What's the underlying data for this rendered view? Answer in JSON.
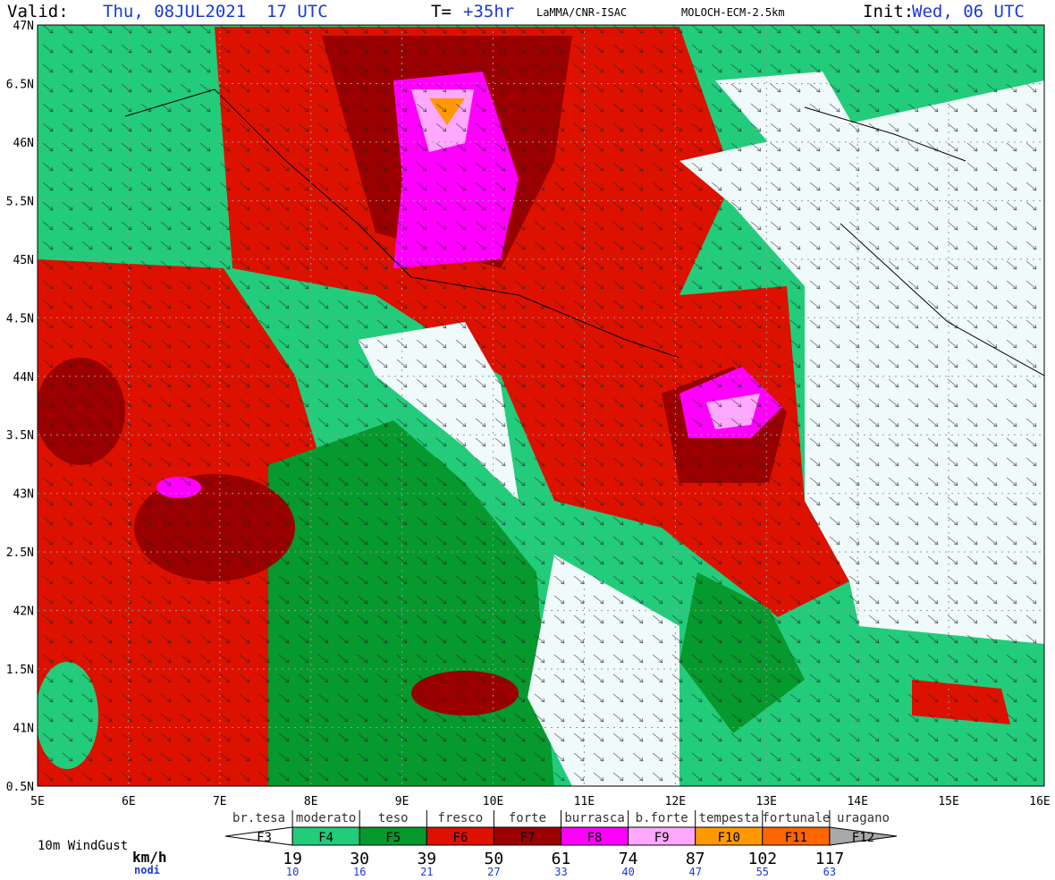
{
  "header": {
    "valid_label": "Valid:",
    "valid": "Thu, 08JUL2021  17 UTC",
    "t_label": "T=",
    "t_value": "+35hr",
    "source": "LaMMA/CNR-ISAC",
    "model": "MOLOCH-ECM-2.5km",
    "init_label": "Init:",
    "init": "Wed, 06 UTC"
  },
  "map": {
    "lat_labels": [
      "47N",
      "6.5N",
      "46N",
      "5.5N",
      "45N",
      "4.5N",
      "44N",
      "3.5N",
      "43N",
      "2.5N",
      "42N",
      "1.5N",
      "41N",
      "0.5N"
    ],
    "lon_labels": [
      "5E",
      "6E",
      "7E",
      "8E",
      "9E",
      "10E",
      "11E",
      "12E",
      "13E",
      "14E",
      "15E",
      "16E"
    ]
  },
  "legend": {
    "title": "10m WindGust",
    "unit_kmh": "km/h",
    "unit_knots": "nodi",
    "scale_names": [
      "br.tesa",
      "moderato",
      "teso",
      "fresco",
      "forte",
      "burrasca",
      "b.forte",
      "tempesta",
      "fortunale",
      "uragano"
    ],
    "classes": [
      {
        "label": "F3",
        "color": "#ffffff"
      },
      {
        "label": "F4",
        "color": "#22cc7a"
      },
      {
        "label": "F5",
        "color": "#06992e"
      },
      {
        "label": "F6",
        "color": "#dd1100"
      },
      {
        "label": "F7",
        "color": "#9a0000"
      },
      {
        "label": "F8",
        "color": "#ff00ff"
      },
      {
        "label": "F9",
        "color": "#ffa8ff"
      },
      {
        "label": "F10",
        "color": "#ff9900"
      },
      {
        "label": "F11",
        "color": "#ff6600"
      },
      {
        "label": "F12",
        "color": "#a8a8a8"
      }
    ],
    "kmh": [
      19,
      30,
      39,
      50,
      61,
      74,
      87,
      102,
      117
    ],
    "knots": [
      10,
      16,
      21,
      27,
      33,
      40,
      47,
      55,
      63
    ]
  }
}
